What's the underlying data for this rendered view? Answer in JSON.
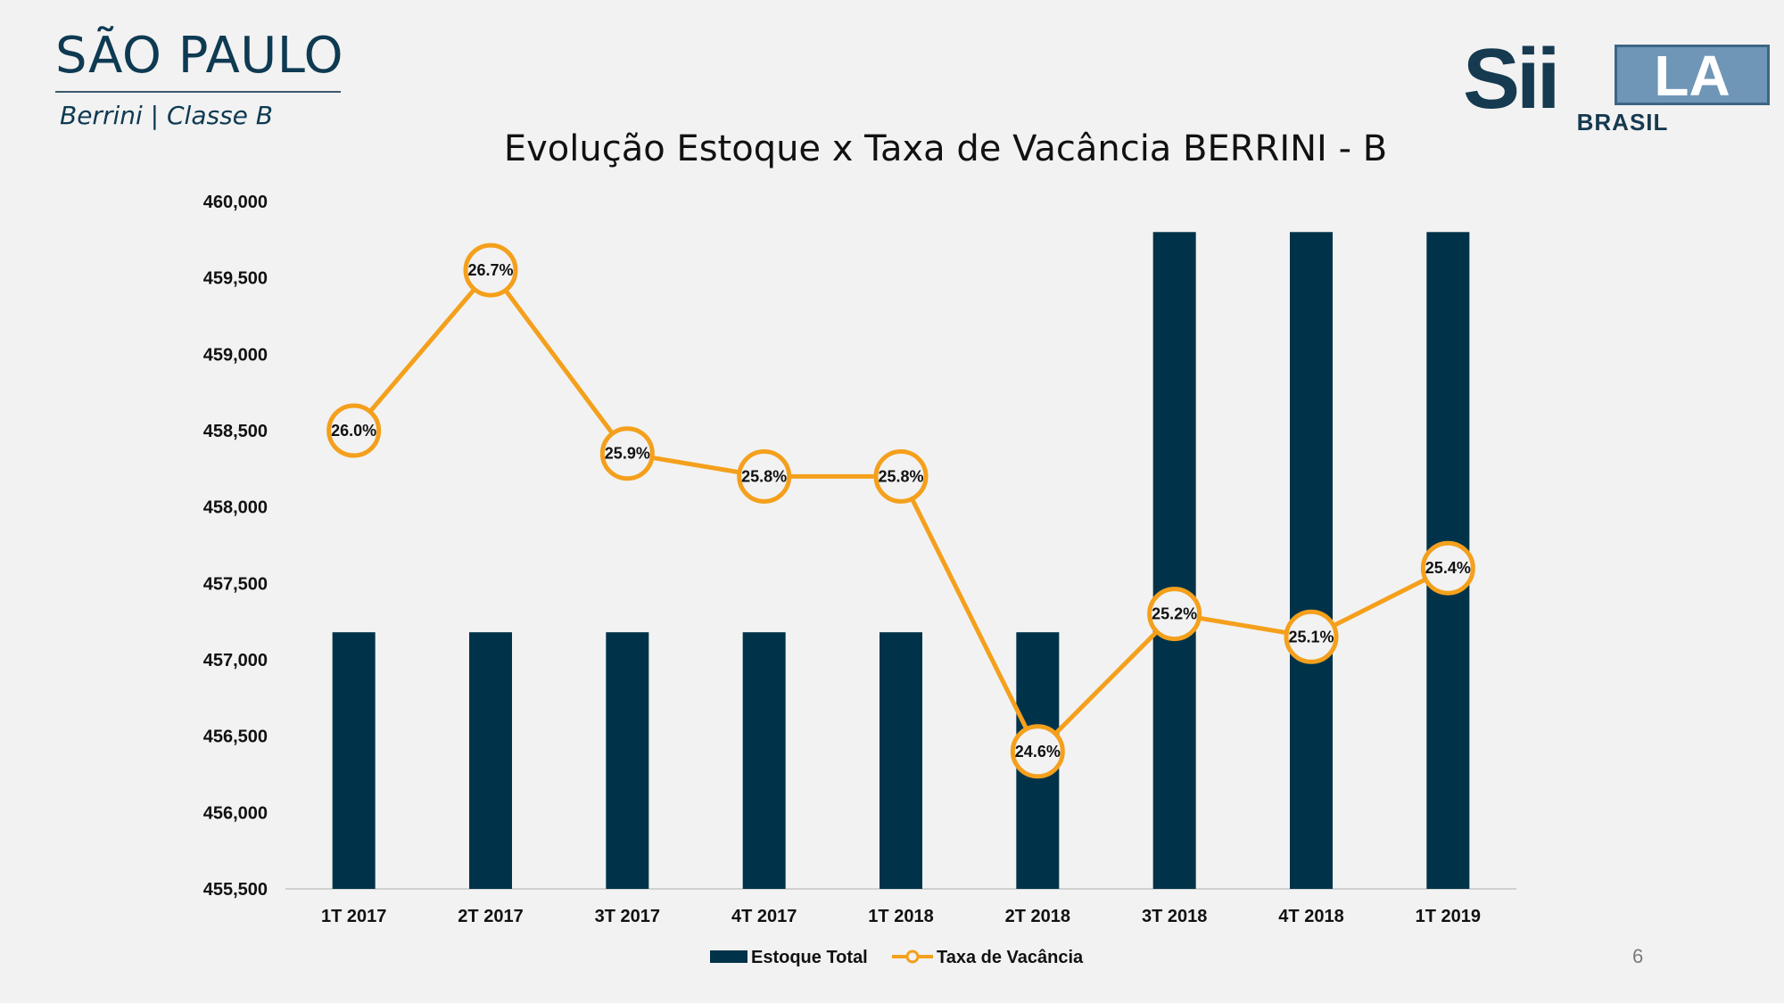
{
  "header": {
    "title": "SÃO PAULO",
    "subtitle": "Berrini | Classe B"
  },
  "logo": {
    "main": "Sii",
    "box": "LA",
    "sub": "BRASIL"
  },
  "page_number": "6",
  "colors": {
    "bar": "#003349",
    "line": "#F4A01C",
    "marker_fill": "#f2f2f2",
    "axis": "#d0d0d0"
  },
  "chart_data": {
    "type": "bar",
    "title": "Evolução Estoque x Taxa de Vacância BERRINI - B",
    "categories": [
      "1T 2017",
      "2T 2017",
      "3T 2017",
      "4T 2017",
      "1T 2018",
      "2T 2018",
      "3T 2018",
      "4T 2018",
      "1T 2019"
    ],
    "ylim": [
      455500,
      460000
    ],
    "yticks": [
      455500,
      456000,
      456500,
      457000,
      457500,
      458000,
      458500,
      459000,
      459500,
      460000
    ],
    "ytick_labels": [
      "455,500",
      "456,000",
      "456,500",
      "457,000",
      "457,500",
      "458,000",
      "458,500",
      "459,000",
      "459,500",
      "460,000"
    ],
    "series": [
      {
        "name": "Estoque Total",
        "type": "bar",
        "values": [
          457180,
          457180,
          457180,
          457180,
          457180,
          457180,
          459800,
          459800,
          459800
        ]
      },
      {
        "name": "Taxa de Vacância",
        "type": "line",
        "values": [
          26.0,
          26.7,
          25.9,
          25.8,
          25.8,
          24.6,
          25.2,
          25.1,
          25.4
        ],
        "labels": [
          "26.0%",
          "26.7%",
          "25.9%",
          "25.8%",
          "25.8%",
          "24.6%",
          "25.2%",
          "25.1%",
          "25.4%"
        ],
        "secondary_axis_range": [
          24.0,
          27.0
        ]
      }
    ],
    "legend": "bottom",
    "grid": false
  }
}
